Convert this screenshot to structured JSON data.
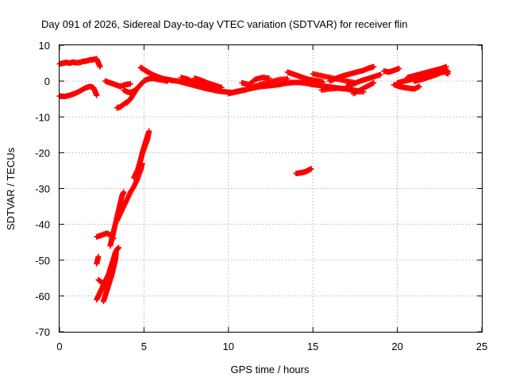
{
  "chart_data": {
    "type": "scatter",
    "title": "Day 091 of 2026, Sidereal Day-to-day VTEC variation (SDTVAR) for receiver flin",
    "xlabel": "GPS time / hours",
    "ylabel": "SDTVAR / TECUs",
    "xlim": [
      0,
      25
    ],
    "ylim": [
      -70,
      10
    ],
    "xticks": [
      "0",
      "5",
      "10",
      "15",
      "20",
      "25"
    ],
    "yticks": [
      "10",
      "0",
      "-10",
      "-20",
      "-30",
      "-40",
      "-50",
      "-60",
      "-70"
    ],
    "grid": true,
    "marker": "+",
    "color": "#ff0000",
    "series": [
      {
        "segments": [
          [
            [
              0.0,
              4.8
            ],
            [
              0.2,
              5.0
            ],
            [
              0.4,
              5.2
            ],
            [
              0.6,
              5.0
            ],
            [
              0.8,
              5.3
            ],
            [
              1.0,
              5.1
            ],
            [
              1.2,
              5.2
            ],
            [
              1.4,
              5.5
            ],
            [
              1.6,
              5.6
            ],
            [
              1.8,
              5.9
            ],
            [
              2.0,
              6.0
            ],
            [
              2.2,
              6.2
            ],
            [
              2.3,
              5.0
            ],
            [
              2.4,
              4.0
            ]
          ],
          [
            [
              0.0,
              -4.2
            ],
            [
              0.3,
              -4.3
            ],
            [
              0.6,
              -4.0
            ],
            [
              0.9,
              -3.5
            ],
            [
              1.2,
              -2.8
            ],
            [
              1.5,
              -2.0
            ],
            [
              1.8,
              -1.5
            ],
            [
              2.0,
              -1.8
            ],
            [
              2.1,
              -2.8
            ],
            [
              2.2,
              -4.0
            ]
          ],
          [
            [
              2.7,
              0.0
            ],
            [
              3.0,
              -0.5
            ],
            [
              3.3,
              -1.0
            ],
            [
              3.6,
              -1.5
            ],
            [
              3.9,
              -1.0
            ],
            [
              4.2,
              -0.8
            ]
          ],
          [
            [
              3.4,
              -7.5
            ],
            [
              3.6,
              -7.2
            ],
            [
              3.8,
              -6.5
            ],
            [
              4.0,
              -5.8
            ]
          ],
          [
            [
              4.0,
              -6.0
            ],
            [
              4.2,
              -5.0
            ],
            [
              4.4,
              -3.5
            ],
            [
              4.6,
              -2.0
            ],
            [
              4.8,
              -1.0
            ],
            [
              5.0,
              0.0
            ],
            [
              5.2,
              0.5
            ],
            [
              5.5,
              0.8
            ],
            [
              5.8,
              0.5
            ],
            [
              6.1,
              0.3
            ],
            [
              6.4,
              0.0
            ]
          ],
          [
            [
              3.8,
              -2.5
            ],
            [
              4.0,
              -3.0
            ],
            [
              4.2,
              -3.2
            ],
            [
              4.4,
              -2.8
            ],
            [
              4.6,
              -2.0
            ]
          ],
          [
            [
              4.8,
              3.8
            ],
            [
              5.0,
              3.2
            ],
            [
              5.2,
              2.6
            ],
            [
              5.5,
              1.8
            ],
            [
              5.8,
              1.2
            ],
            [
              6.2,
              0.6
            ],
            [
              6.6,
              0.3
            ]
          ],
          [
            [
              6.6,
              0.2
            ],
            [
              7.0,
              0.0
            ],
            [
              7.4,
              -0.5
            ],
            [
              7.8,
              -1.0
            ],
            [
              8.2,
              -1.5
            ],
            [
              8.6,
              -2.0
            ],
            [
              9.0,
              -2.4
            ],
            [
              9.4,
              -2.8
            ],
            [
              9.8,
              -3.0
            ],
            [
              10.2,
              -3.2
            ],
            [
              10.6,
              -2.8
            ],
            [
              11.0,
              -2.4
            ],
            [
              11.4,
              -2.0
            ],
            [
              11.8,
              -1.6
            ],
            [
              12.2,
              -1.4
            ],
            [
              12.6,
              -1.2
            ],
            [
              13.0,
              -1.0
            ],
            [
              13.4,
              -0.6
            ],
            [
              13.8,
              -0.4
            ],
            [
              14.2,
              -0.4
            ],
            [
              14.6,
              -0.6
            ],
            [
              15.0,
              -1.0
            ],
            [
              15.4,
              -1.2
            ],
            [
              15.8,
              -1.5
            ],
            [
              16.2,
              -1.8
            ],
            [
              16.6,
              -2.0
            ],
            [
              17.0,
              -2.2
            ],
            [
              17.4,
              -2.6
            ],
            [
              17.8,
              -3.0
            ]
          ],
          [
            [
              7.2,
              1.0
            ],
            [
              7.6,
              0.5
            ],
            [
              8.0,
              -0.5
            ],
            [
              8.4,
              -1.0
            ],
            [
              8.8,
              -1.6
            ],
            [
              9.2,
              -2.0
            ],
            [
              9.6,
              -2.6
            ]
          ],
          [
            [
              8.0,
              0.8
            ],
            [
              8.4,
              0.2
            ],
            [
              8.8,
              -0.6
            ],
            [
              9.2,
              -1.2
            ],
            [
              9.6,
              -1.8
            ]
          ],
          [
            [
              10.0,
              -3.5
            ],
            [
              10.5,
              -3.0
            ],
            [
              11.0,
              -2.5
            ],
            [
              11.5,
              -1.5
            ],
            [
              12.0,
              -0.8
            ],
            [
              12.5,
              -0.2
            ],
            [
              13.0,
              0.4
            ],
            [
              13.5,
              0.6
            ]
          ],
          [
            [
              10.8,
              -0.5
            ],
            [
              11.2,
              -1.0
            ],
            [
              11.6,
              0.5
            ],
            [
              12.0,
              1.0
            ],
            [
              12.4,
              0.8
            ]
          ],
          [
            [
              13.5,
              2.5
            ],
            [
              13.8,
              2.0
            ],
            [
              14.1,
              1.5
            ],
            [
              14.4,
              1.0
            ],
            [
              14.7,
              0.5
            ],
            [
              15.0,
              0.2
            ],
            [
              15.3,
              0.0
            ],
            [
              15.6,
              -0.3
            ]
          ],
          [
            [
              15.0,
              2.0
            ],
            [
              15.5,
              1.5
            ],
            [
              16.0,
              1.0
            ],
            [
              16.5,
              0.5
            ],
            [
              17.0,
              0.0
            ],
            [
              17.5,
              -0.5
            ]
          ],
          [
            [
              15.5,
              -2.5
            ],
            [
              16.0,
              -2.2
            ],
            [
              16.5,
              -2.0
            ],
            [
              17.0,
              -2.2
            ],
            [
              17.5,
              -2.6
            ],
            [
              18.0,
              -3.0
            ]
          ],
          [
            [
              16.0,
              0.0
            ],
            [
              16.4,
              0.8
            ],
            [
              16.8,
              1.5
            ],
            [
              17.2,
              2.0
            ],
            [
              17.6,
              2.5
            ],
            [
              18.0,
              3.0
            ],
            [
              18.3,
              3.6
            ],
            [
              18.6,
              4.0
            ]
          ],
          [
            [
              17.0,
              -1.5
            ],
            [
              17.4,
              -0.8
            ],
            [
              17.8,
              0.0
            ],
            [
              18.2,
              0.6
            ],
            [
              18.6,
              1.2
            ],
            [
              19.0,
              1.8
            ]
          ],
          [
            [
              17.4,
              -3.5
            ],
            [
              17.8,
              -2.5
            ],
            [
              18.2,
              -1.5
            ],
            [
              18.6,
              -0.5
            ]
          ],
          [
            [
              19.2,
              2.8
            ],
            [
              19.5,
              2.5
            ],
            [
              19.8,
              3.0
            ],
            [
              20.1,
              3.5
            ]
          ],
          [
            [
              19.8,
              -1.0
            ],
            [
              20.1,
              -1.5
            ],
            [
              20.4,
              -1.8
            ],
            [
              20.7,
              -2.0
            ],
            [
              21.0,
              -2.2
            ],
            [
              21.3,
              -1.5
            ]
          ],
          [
            [
              20.0,
              -0.5
            ],
            [
              20.4,
              0.0
            ],
            [
              20.8,
              0.4
            ],
            [
              21.2,
              0.8
            ],
            [
              21.6,
              1.2
            ],
            [
              22.0,
              1.8
            ],
            [
              22.4,
              2.2
            ],
            [
              22.8,
              2.6
            ],
            [
              23.0,
              2.0
            ]
          ],
          [
            [
              21.0,
              0.0
            ],
            [
              21.4,
              0.4
            ],
            [
              21.8,
              1.0
            ],
            [
              22.2,
              1.6
            ],
            [
              22.6,
              2.4
            ],
            [
              22.8,
              3.4
            ],
            [
              23.0,
              2.6
            ]
          ],
          [
            [
              20.6,
              1.0
            ],
            [
              21.0,
              1.5
            ],
            [
              21.4,
              2.0
            ],
            [
              21.8,
              2.5
            ],
            [
              22.2,
              3.0
            ],
            [
              22.6,
              3.5
            ],
            [
              22.9,
              4.0
            ]
          ],
          [
            [
              14.0,
              -25.8
            ],
            [
              14.3,
              -25.6
            ],
            [
              14.5,
              -25.4
            ],
            [
              14.7,
              -25.0
            ],
            [
              14.9,
              -24.5
            ]
          ],
          [
            [
              2.2,
              -43.5
            ],
            [
              2.5,
              -43.0
            ],
            [
              2.8,
              -42.5
            ],
            [
              3.0,
              -43.0
            ],
            [
              3.2,
              -44.0
            ]
          ],
          [
            [
              2.3,
              -49.0
            ],
            [
              2.2,
              -51.0
            ]
          ],
          [
            [
              2.3,
              -55.5
            ],
            [
              2.6,
              -56.5
            ],
            [
              2.8,
              -57.0
            ]
          ],
          [
            [
              2.2,
              -61.0
            ],
            [
              2.3,
              -60.0
            ],
            [
              2.4,
              -59.0
            ],
            [
              2.5,
              -58.0
            ],
            [
              2.6,
              -57.0
            ],
            [
              2.7,
              -56.0
            ],
            [
              2.8,
              -55.0
            ],
            [
              2.9,
              -54.0
            ],
            [
              3.0,
              -52.5
            ],
            [
              3.1,
              -51.0
            ],
            [
              3.2,
              -49.5
            ],
            [
              3.3,
              -48.0
            ],
            [
              3.4,
              -47.0
            ],
            [
              3.5,
              -46.5
            ]
          ],
          [
            [
              2.6,
              -61.5
            ],
            [
              2.7,
              -60.0
            ],
            [
              2.8,
              -58.5
            ],
            [
              2.9,
              -57.0
            ],
            [
              3.0,
              -55.5
            ],
            [
              3.1,
              -54.0
            ],
            [
              3.2,
              -52.0
            ],
            [
              3.3,
              -50.0
            ],
            [
              3.35,
              -48.0
            ]
          ],
          [
            [
              3.0,
              -46.0
            ],
            [
              3.1,
              -44.0
            ],
            [
              3.2,
              -42.0
            ],
            [
              3.3,
              -40.0
            ],
            [
              3.4,
              -38.0
            ],
            [
              3.5,
              -36.0
            ],
            [
              3.6,
              -34.0
            ],
            [
              3.7,
              -32.0
            ],
            [
              3.8,
              -31.0
            ]
          ],
          [
            [
              3.4,
              -39.0
            ],
            [
              3.6,
              -37.0
            ],
            [
              3.8,
              -35.0
            ],
            [
              4.0,
              -33.0
            ],
            [
              4.2,
              -31.0
            ],
            [
              4.4,
              -29.5
            ],
            [
              4.6,
              -27.5
            ],
            [
              4.8,
              -25.0
            ],
            [
              4.9,
              -23.0
            ]
          ],
          [
            [
              4.6,
              -26.0
            ],
            [
              4.7,
              -24.0
            ],
            [
              4.8,
              -22.0
            ],
            [
              4.9,
              -20.0
            ],
            [
              5.0,
              -18.5
            ],
            [
              5.1,
              -17.0
            ],
            [
              5.2,
              -15.5
            ],
            [
              5.3,
              -14.0
            ]
          ],
          [
            [
              4.4,
              -27.0
            ],
            [
              4.6,
              -25.0
            ],
            [
              4.8,
              -22.0
            ],
            [
              5.0,
              -19.0
            ],
            [
              5.2,
              -16.5
            ],
            [
              5.3,
              -14.0
            ]
          ]
        ]
      }
    ]
  }
}
